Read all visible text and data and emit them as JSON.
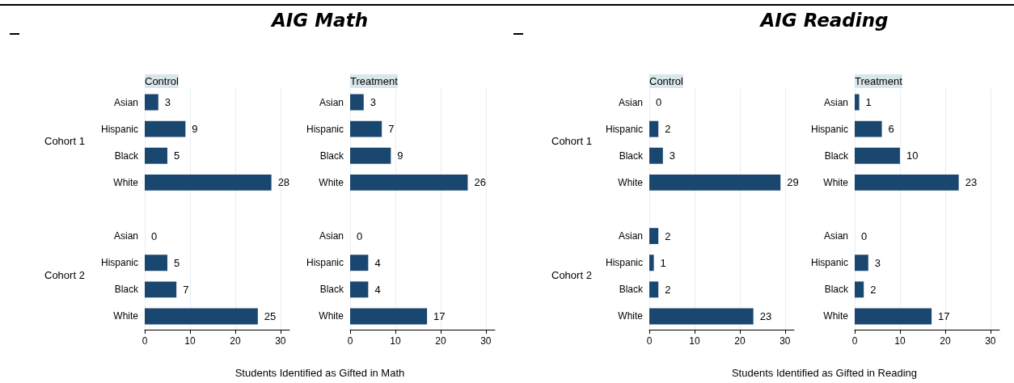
{
  "chart_data": [
    {
      "type": "bar",
      "orientation": "horizontal",
      "subtitle": "AIG Math",
      "title": "Control",
      "xlabel": "Students Identified as Gifted in Math",
      "annotations": [
        "Cohort 1",
        "Cohort 2"
      ],
      "categories": [
        "Asian",
        "Hispanic",
        "Black",
        "White",
        null,
        "Asian",
        "Hispanic",
        "Black",
        "White"
      ],
      "values": [
        3,
        9,
        5,
        28,
        null,
        0,
        5,
        7,
        25
      ],
      "color": "#1a476f",
      "xlim": [
        0,
        32
      ],
      "xticks": [
        0,
        10,
        20,
        30
      ],
      "grid": "x",
      "data_labels": true
    },
    {
      "type": "bar",
      "orientation": "horizontal",
      "title": "Treatment",
      "categories": [
        "Asian",
        "Hispanic",
        "Black",
        "White",
        null,
        "Asian",
        "Hispanic",
        "Black",
        "White"
      ],
      "values": [
        3,
        7,
        9,
        26,
        null,
        0,
        4,
        4,
        17
      ],
      "color": "#1a476f",
      "xlim": [
        0,
        32
      ],
      "xticks": [
        0,
        10,
        20,
        30
      ],
      "grid": "x",
      "data_labels": true
    },
    {
      "type": "bar",
      "orientation": "horizontal",
      "subtitle": "AIG Reading",
      "title": "Control",
      "xlabel": "Students Identified as Gifted in Reading",
      "annotations": [
        "Cohort 1",
        "Cohort 2"
      ],
      "categories": [
        "Asian",
        "Hispanic",
        "Black",
        "White",
        null,
        "Asian",
        "Hispanic",
        "Black",
        "White"
      ],
      "values": [
        0,
        2,
        3,
        29,
        null,
        2,
        1,
        2,
        23
      ],
      "color": "#1a476f",
      "xlim": [
        0,
        32
      ],
      "xticks": [
        0,
        10,
        20,
        30
      ],
      "grid": "x",
      "data_labels": true
    },
    {
      "type": "bar",
      "orientation": "horizontal",
      "title": "Treatment",
      "categories": [
        "Asian",
        "Hispanic",
        "Black",
        "White",
        null,
        "Asian",
        "Hispanic",
        "Black",
        "White"
      ],
      "values": [
        1,
        6,
        10,
        23,
        null,
        0,
        3,
        2,
        17
      ],
      "color": "#1a476f",
      "xlim": [
        0,
        32
      ],
      "xticks": [
        0,
        10,
        20,
        30
      ],
      "grid": "x",
      "data_labels": true
    }
  ]
}
